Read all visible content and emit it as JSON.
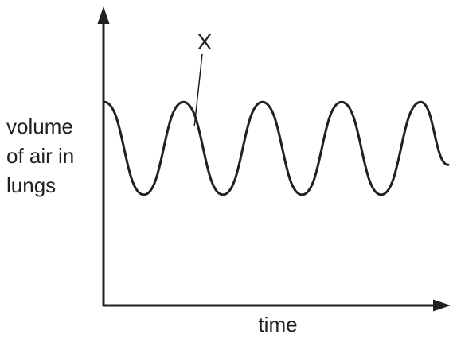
{
  "chart_data": {
    "type": "line",
    "ylabel_lines": [
      "volume",
      "of air in",
      "lungs"
    ],
    "xlabel": "time",
    "annotation": "X",
    "axis_color": "#231f20",
    "line_color": "#231f20",
    "grid": false,
    "legend": false,
    "ticks": false,
    "xlim": [
      0,
      1
    ],
    "ylim": [
      0,
      1
    ],
    "series": [
      {
        "x": [
          0,
          0.115,
          0.23,
          0.345,
          0.46,
          0.575,
          0.69,
          0.805,
          0.92,
          1.0
        ],
        "y": [
          0.68,
          0.37,
          0.68,
          0.37,
          0.68,
          0.37,
          0.68,
          0.37,
          0.68,
          0.47
        ]
      }
    ],
    "annotation_target": {
      "x": 0.262,
      "y": 0.6
    }
  }
}
